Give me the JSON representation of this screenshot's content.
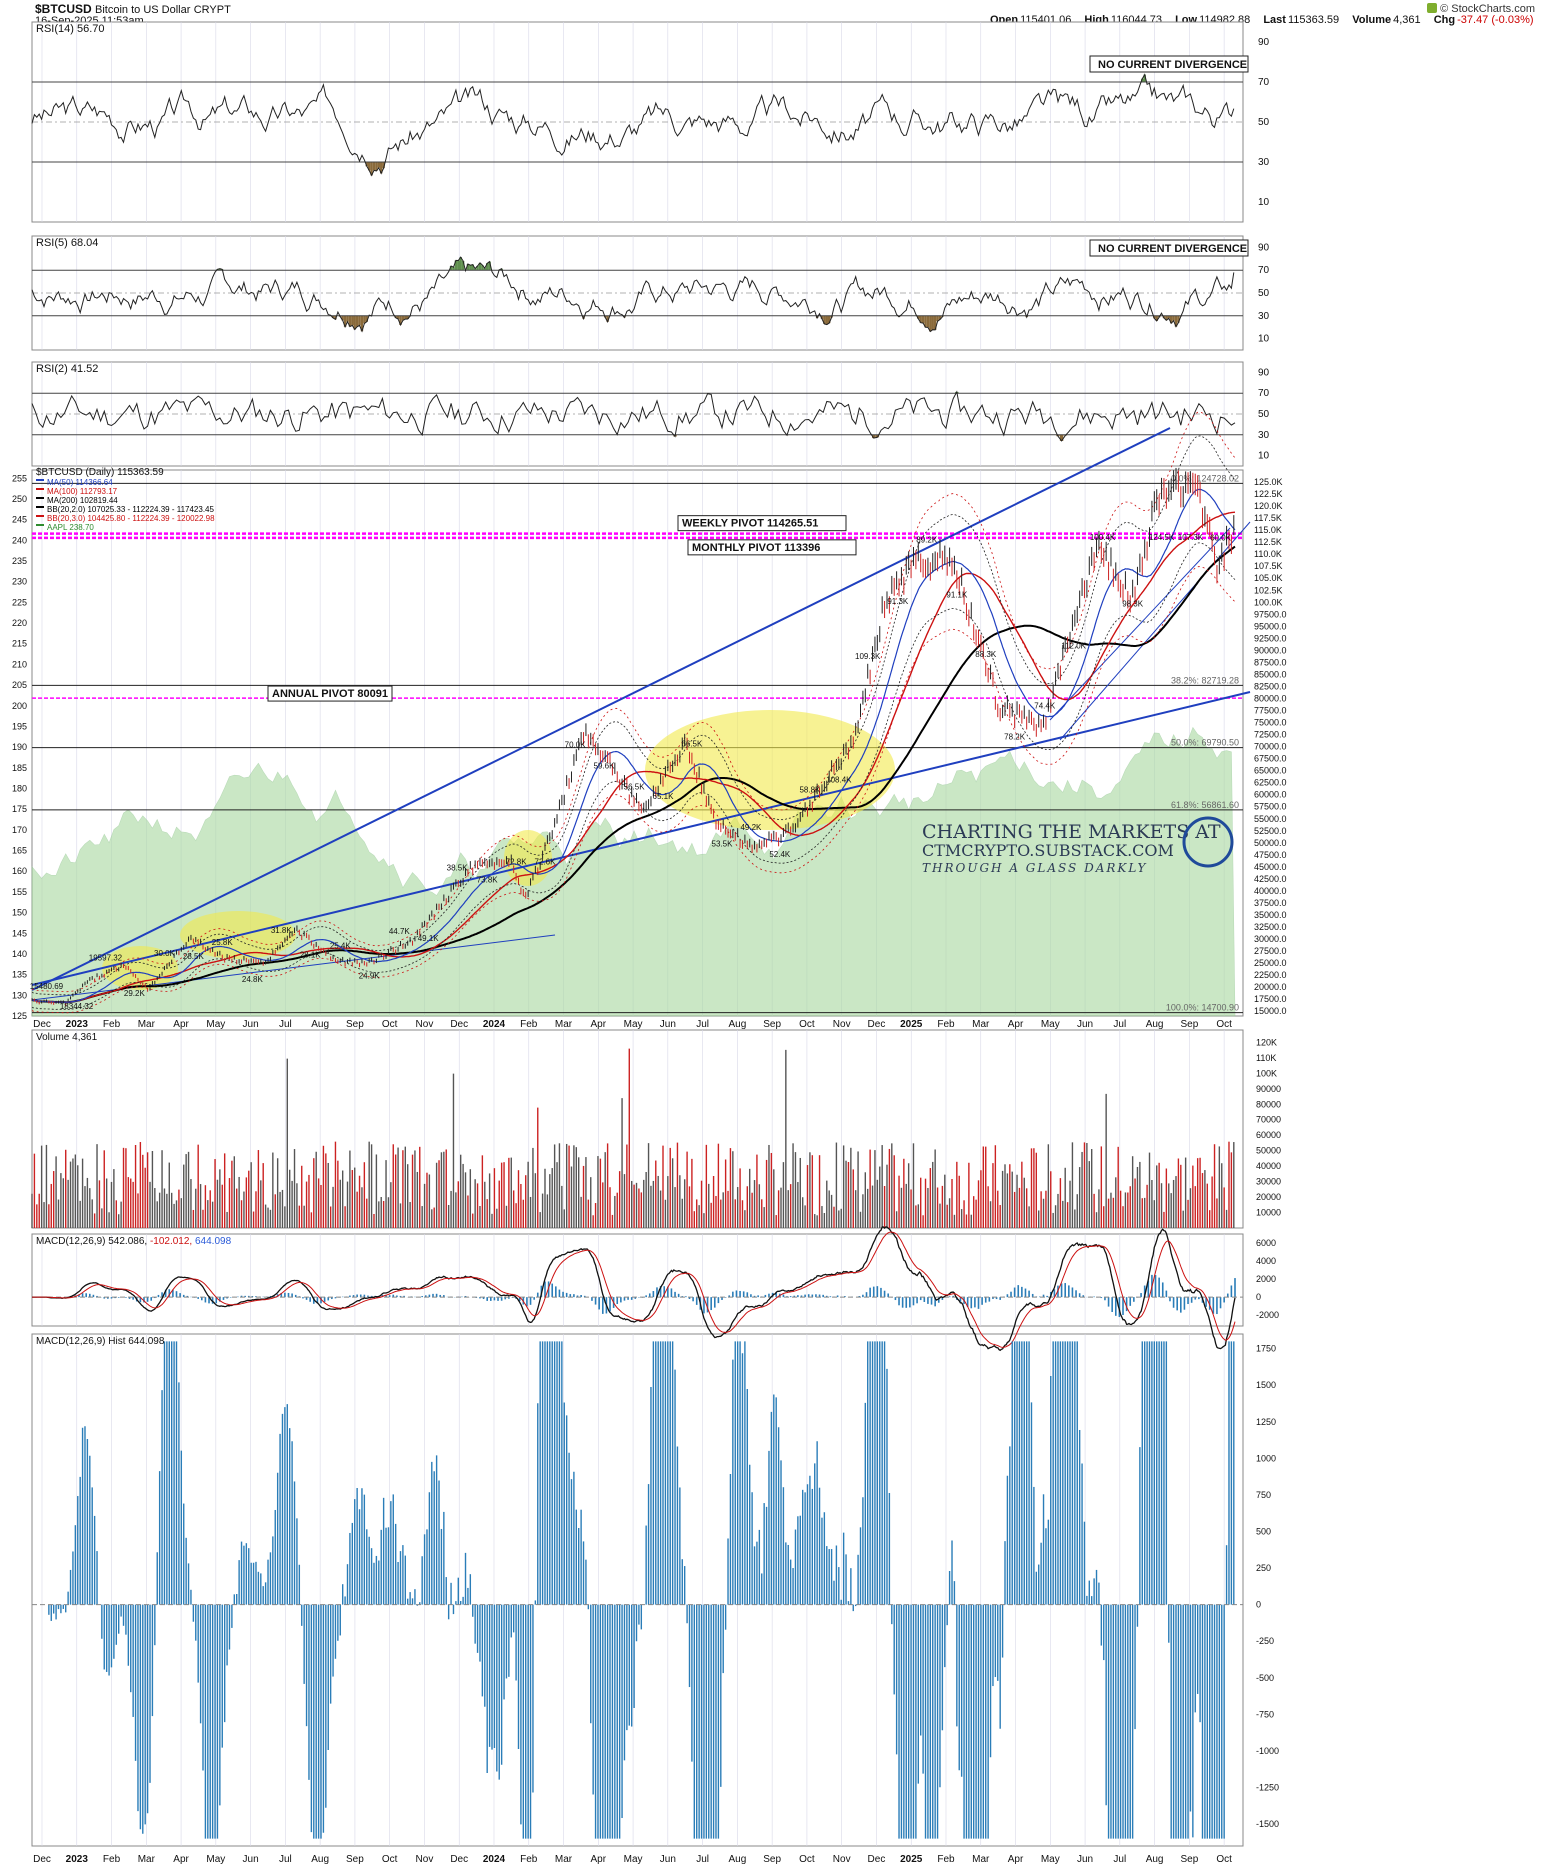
{
  "header": {
    "symbol": "$BTCUSD",
    "name": "Bitcoin to US Dollar",
    "exchange": "CRYPT",
    "timestamp": "16-Sep-2025 11:53am",
    "open_label": "Open",
    "open": "115401.06",
    "high_label": "High",
    "high": "116044.73",
    "low_label": "Low",
    "low": "114982.88",
    "last_label": "Last",
    "last": "115363.59",
    "volume_label": "Volume",
    "volume": "4,361",
    "chg_label": "Chg",
    "chg": "-37.47 (-0.03%)",
    "brand": "© StockCharts.com"
  },
  "colors": {
    "ma50": "#1f3fbf",
    "ma100": "#cc1111",
    "ma200": "#000000",
    "pivot": "#ff00ff",
    "trendline": "#1f3fbf",
    "green_area": "#a8d8a0",
    "highlight": "#f2ea4b",
    "up_bar": "#555555",
    "down_bar": "#cc2222",
    "hist": "#2a7db8"
  },
  "time_axis": [
    "Dec",
    "2023",
    "Feb",
    "Mar",
    "Apr",
    "May",
    "Jun",
    "Jul",
    "Aug",
    "Sep",
    "Oct",
    "Nov",
    "Dec",
    "2024",
    "Feb",
    "Mar",
    "Apr",
    "May",
    "Jun",
    "Jul",
    "Aug",
    "Sep",
    "Oct",
    "Nov",
    "Dec",
    "2025",
    "Feb",
    "Mar",
    "Apr",
    "May",
    "Jun",
    "Jul",
    "Aug",
    "Sep",
    "Oct"
  ],
  "chart_data": [
    {
      "type": "line",
      "panel": "rsi14",
      "title": "RSI(14) 56.70",
      "ylim": [
        0,
        100
      ],
      "yticks": [
        10,
        30,
        50,
        70,
        90
      ],
      "levels": [
        30,
        50,
        70
      ],
      "annotation": "NO CURRENT DIVERGENCE",
      "series": [
        {
          "name": "RSI(14)",
          "seed": 3,
          "amp": 14,
          "base": 52,
          "last": 56.7
        }
      ]
    },
    {
      "type": "line",
      "panel": "rsi5",
      "title": "RSI(5) 68.04",
      "ylim": [
        0,
        100
      ],
      "yticks": [
        10,
        30,
        50,
        70,
        90
      ],
      "levels": [
        30,
        50,
        70
      ],
      "annotation": "NO CURRENT DIVERGENCE",
      "series": [
        {
          "name": "RSI(5)",
          "seed": 7,
          "amp": 22,
          "base": 52,
          "last": 68.04
        }
      ]
    },
    {
      "type": "line",
      "panel": "rsi2",
      "title": "RSI(2) 41.52",
      "ylim": [
        0,
        100
      ],
      "yticks": [
        10,
        30,
        50,
        70,
        90
      ],
      "levels": [
        30,
        50,
        70
      ],
      "series": [
        {
          "name": "RSI(2)",
          "seed": 11,
          "amp": 36,
          "base": 50,
          "last": 41.52
        }
      ]
    },
    {
      "type": "line",
      "panel": "price",
      "title": "$BTCUSD (Daily) 115363.59",
      "legend": [
        {
          "label": "MA(50) 114366.64",
          "color": "#1f3fbf"
        },
        {
          "label": "MA(100) 112793.17",
          "color": "#cc1111"
        },
        {
          "label": "MA(200) 102819.44",
          "color": "#000000"
        },
        {
          "label": "BB(20,2.0) 107025.33 - 112224.39 - 117423.45",
          "color": "#000000"
        },
        {
          "label": "BB(20,3.0) 104425.80 - 112224.39 - 120022.98",
          "color": "#cc1111"
        },
        {
          "label": "AAPL 238.70",
          "color": "#2e8b2e"
        }
      ],
      "left_axis": [
        125,
        130,
        135,
        140,
        145,
        150,
        155,
        160,
        165,
        170,
        175,
        180,
        185,
        190,
        195,
        200,
        205,
        210,
        215,
        220,
        225,
        230,
        235,
        240,
        245,
        250,
        255
      ],
      "right_axis": [
        "15000.0",
        "17500.0",
        "20000.0",
        "22500.0",
        "25000.0",
        "27500.0",
        "30000.0",
        "32500.0",
        "35000.0",
        "37500.0",
        "40000.0",
        "42500.0",
        "45000.0",
        "47500.0",
        "50000.0",
        "52500.0",
        "55000.0",
        "57500.0",
        "60000.0",
        "62500.0",
        "65000.0",
        "67500.0",
        "70000.0",
        "72500.0",
        "75000.0",
        "77500.0",
        "80000.0",
        "82500.0",
        "85000.0",
        "87500.0",
        "90000.0",
        "92500.0",
        "95000.0",
        "97500.0",
        "100.0K",
        "102.5K",
        "105.0K",
        "107.5K",
        "110.0K",
        "112.5K",
        "115.0K",
        "117.5K",
        "120.0K",
        "122.5K",
        "125.0K"
      ],
      "price_points": [
        {
          "date": "2022-12-01",
          "close": 17100
        },
        {
          "date": "2022-12-30",
          "close": 16550
        },
        {
          "date": "2023-01-15",
          "close": 20900
        },
        {
          "date": "2023-02-16",
          "close": 24500
        },
        {
          "date": "2023-03-10",
          "close": 19597
        },
        {
          "date": "2023-04-14",
          "close": 30300
        },
        {
          "date": "2023-05-12",
          "close": 26200
        },
        {
          "date": "2023-06-15",
          "close": 24800
        },
        {
          "date": "2023-07-13",
          "close": 31800
        },
        {
          "date": "2023-08-17",
          "close": 25400
        },
        {
          "date": "2023-09-11",
          "close": 24900
        },
        {
          "date": "2023-10-20",
          "close": 29800
        },
        {
          "date": "2023-11-15",
          "close": 37800
        },
        {
          "date": "2023-12-08",
          "close": 44700
        },
        {
          "date": "2024-01-11",
          "close": 46500
        },
        {
          "date": "2024-01-23",
          "close": 38500
        },
        {
          "date": "2024-02-15",
          "close": 52000
        },
        {
          "date": "2024-03-14",
          "close": 73800
        },
        {
          "date": "2024-05-01",
          "close": 56500
        },
        {
          "date": "2024-06-07",
          "close": 71000
        },
        {
          "date": "2024-07-05",
          "close": 53500
        },
        {
          "date": "2024-08-05",
          "close": 49200
        },
        {
          "date": "2024-09-06",
          "close": 52500
        },
        {
          "date": "2024-10-29",
          "close": 72000
        },
        {
          "date": "2024-11-22",
          "close": 99000
        },
        {
          "date": "2024-12-17",
          "close": 108400
        },
        {
          "date": "2025-01-20",
          "close": 109300
        },
        {
          "date": "2025-02-28",
          "close": 78200
        },
        {
          "date": "2025-04-07",
          "close": 74400
        },
        {
          "date": "2025-05-22",
          "close": 111800
        },
        {
          "date": "2025-06-22",
          "close": 100400
        },
        {
          "date": "2025-07-14",
          "close": 123000
        },
        {
          "date": "2025-08-14",
          "close": 124500
        },
        {
          "date": "2025-09-01",
          "close": 107300
        },
        {
          "date": "2025-09-16",
          "close": 115363.59
        }
      ],
      "pivots": [
        {
          "label": "WEEKLY PIVOT 114265.51",
          "value": 114265.51
        },
        {
          "label": "MONTHLY PIVOT 113396",
          "value": 113396
        },
        {
          "label": "ANNUAL PIVOT 80091",
          "value": 80091
        }
      ],
      "fib_levels": [
        {
          "label": "0.0%: 124728.02",
          "value": 124728
        },
        {
          "label": "38.2%: 82719.28",
          "value": 82719
        },
        {
          "label": "50.0%: 69790.50",
          "value": 69790
        },
        {
          "label": "61.8%: 56861.60",
          "value": 56861
        },
        {
          "label": "100.0%: 14700.90",
          "value": 14700
        }
      ],
      "price_labels": [
        "15480.69",
        "18344.32",
        "19597.32",
        "29.2K",
        "30.0K",
        "28.5K",
        "25.8K",
        "24.8K",
        "31.8K",
        "28.1K",
        "25.4K",
        "24.9K",
        "44.7K",
        "49.1K",
        "38.5K",
        "73.8K",
        "72.8K",
        "72.6K",
        "70.0K",
        "59.6K",
        "56.5K",
        "65.1K",
        "66.5K",
        "53.5K",
        "49.2K",
        "52.4K",
        "58.8K",
        "108.4K",
        "109.3K",
        "91.3K",
        "89.2K",
        "91.1K",
        "88.3K",
        "78.2K",
        "74.4K",
        "112.0K",
        "100.4K",
        "98.3K",
        "124.5K",
        "107.3K",
        "60.0K"
      ],
      "watermark": [
        "CHARTING THE MARKETS AT",
        "CTMCRYPTO.SUBSTACK.COM",
        "THROUGH A GLASS DARKLY"
      ]
    },
    {
      "type": "bar",
      "panel": "volume",
      "title": "Volume 4,361",
      "yticks": [
        "10000",
        "20000",
        "30000",
        "40000",
        "50000",
        "60000",
        "70000",
        "80000",
        "90000",
        "100K",
        "110K",
        "120K"
      ],
      "ylim": [
        0,
        128000
      ]
    },
    {
      "type": "line",
      "panel": "macd",
      "title_parts": [
        "MACD(12,26,9) 542.086,",
        " -102.012,",
        " 644.098"
      ],
      "yticks": [
        "-2000",
        "0",
        "2000",
        "4000",
        "6000"
      ],
      "ylim": [
        -3200,
        7000
      ]
    },
    {
      "type": "bar",
      "panel": "macd_hist",
      "title": "MACD(12,26,9) Hist 644.098",
      "yticks": [
        "-1500",
        "-1250",
        "-1000",
        "-750",
        "-500",
        "-250",
        "0",
        "250",
        "500",
        "750",
        "1000",
        "1250",
        "1500",
        "1750"
      ],
      "ylim": [
        -1650,
        1850
      ]
    }
  ]
}
